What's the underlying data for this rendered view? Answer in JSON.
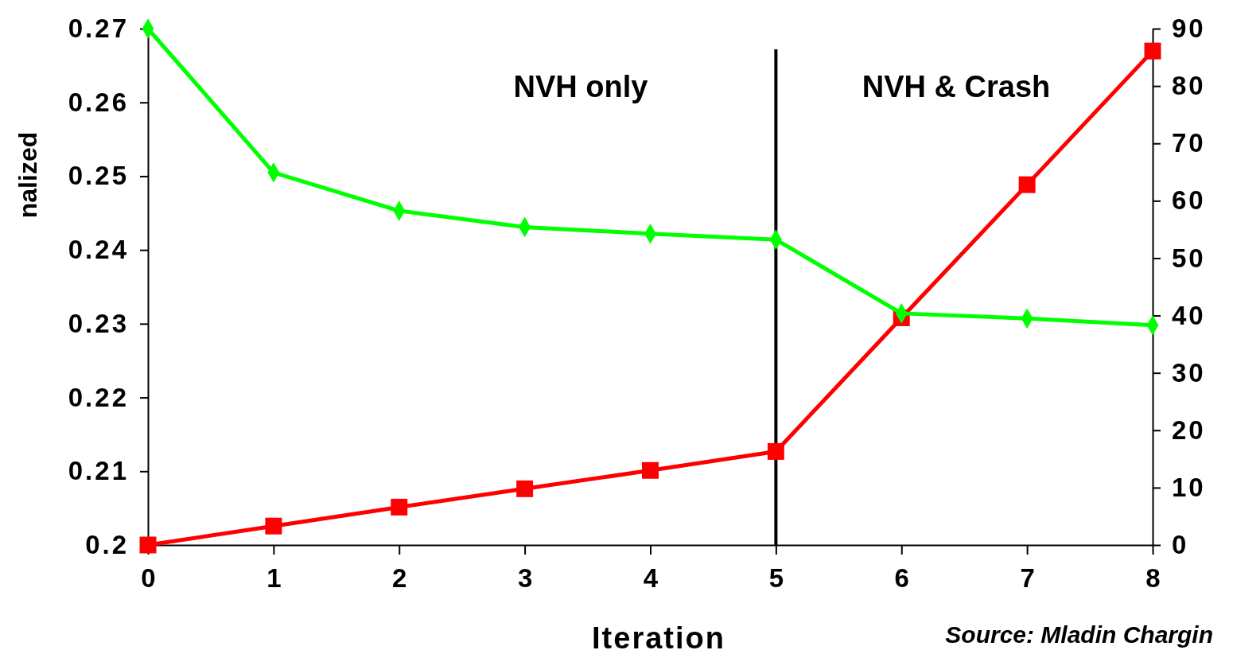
{
  "chart_data": {
    "type": "line",
    "xlabel": "Iteration",
    "ylabel": "nalized",
    "x": [
      0,
      1,
      2,
      3,
      4,
      5,
      6,
      7,
      8
    ],
    "series": [
      {
        "color": "#00ff00",
        "marker": "diamond",
        "values": [
          0.27,
          0.2505,
          0.2453,
          0.2431,
          0.2422,
          0.2414,
          0.2314,
          0.2307,
          0.2298
        ]
      },
      {
        "color": "#ff0000",
        "marker": "square",
        "axis": "y2",
        "values": [
          0,
          3.3,
          6.6,
          9.8,
          13.0,
          16.3,
          39.6,
          62.8,
          86.1
        ]
      }
    ],
    "xlim": [
      0,
      8
    ],
    "xticks": [
      0,
      1,
      2,
      3,
      4,
      5,
      6,
      7,
      8
    ],
    "ylim": [
      0.2,
      0.27
    ],
    "yticks": [
      0.2,
      0.21,
      0.22,
      0.23,
      0.24,
      0.25,
      0.26,
      0.27
    ],
    "y2lim": [
      0,
      90
    ],
    "y2ticks": [
      0,
      10,
      20,
      30,
      40,
      50,
      60,
      70,
      80,
      90
    ],
    "ref_lines": [
      {
        "axis": "x",
        "value": 5,
        "color": "#000000"
      }
    ],
    "annotations": [
      "NVH only",
      "NVH & Crash",
      "Source: Mladin Chargin"
    ],
    "grid": false,
    "line_style": "solid"
  }
}
